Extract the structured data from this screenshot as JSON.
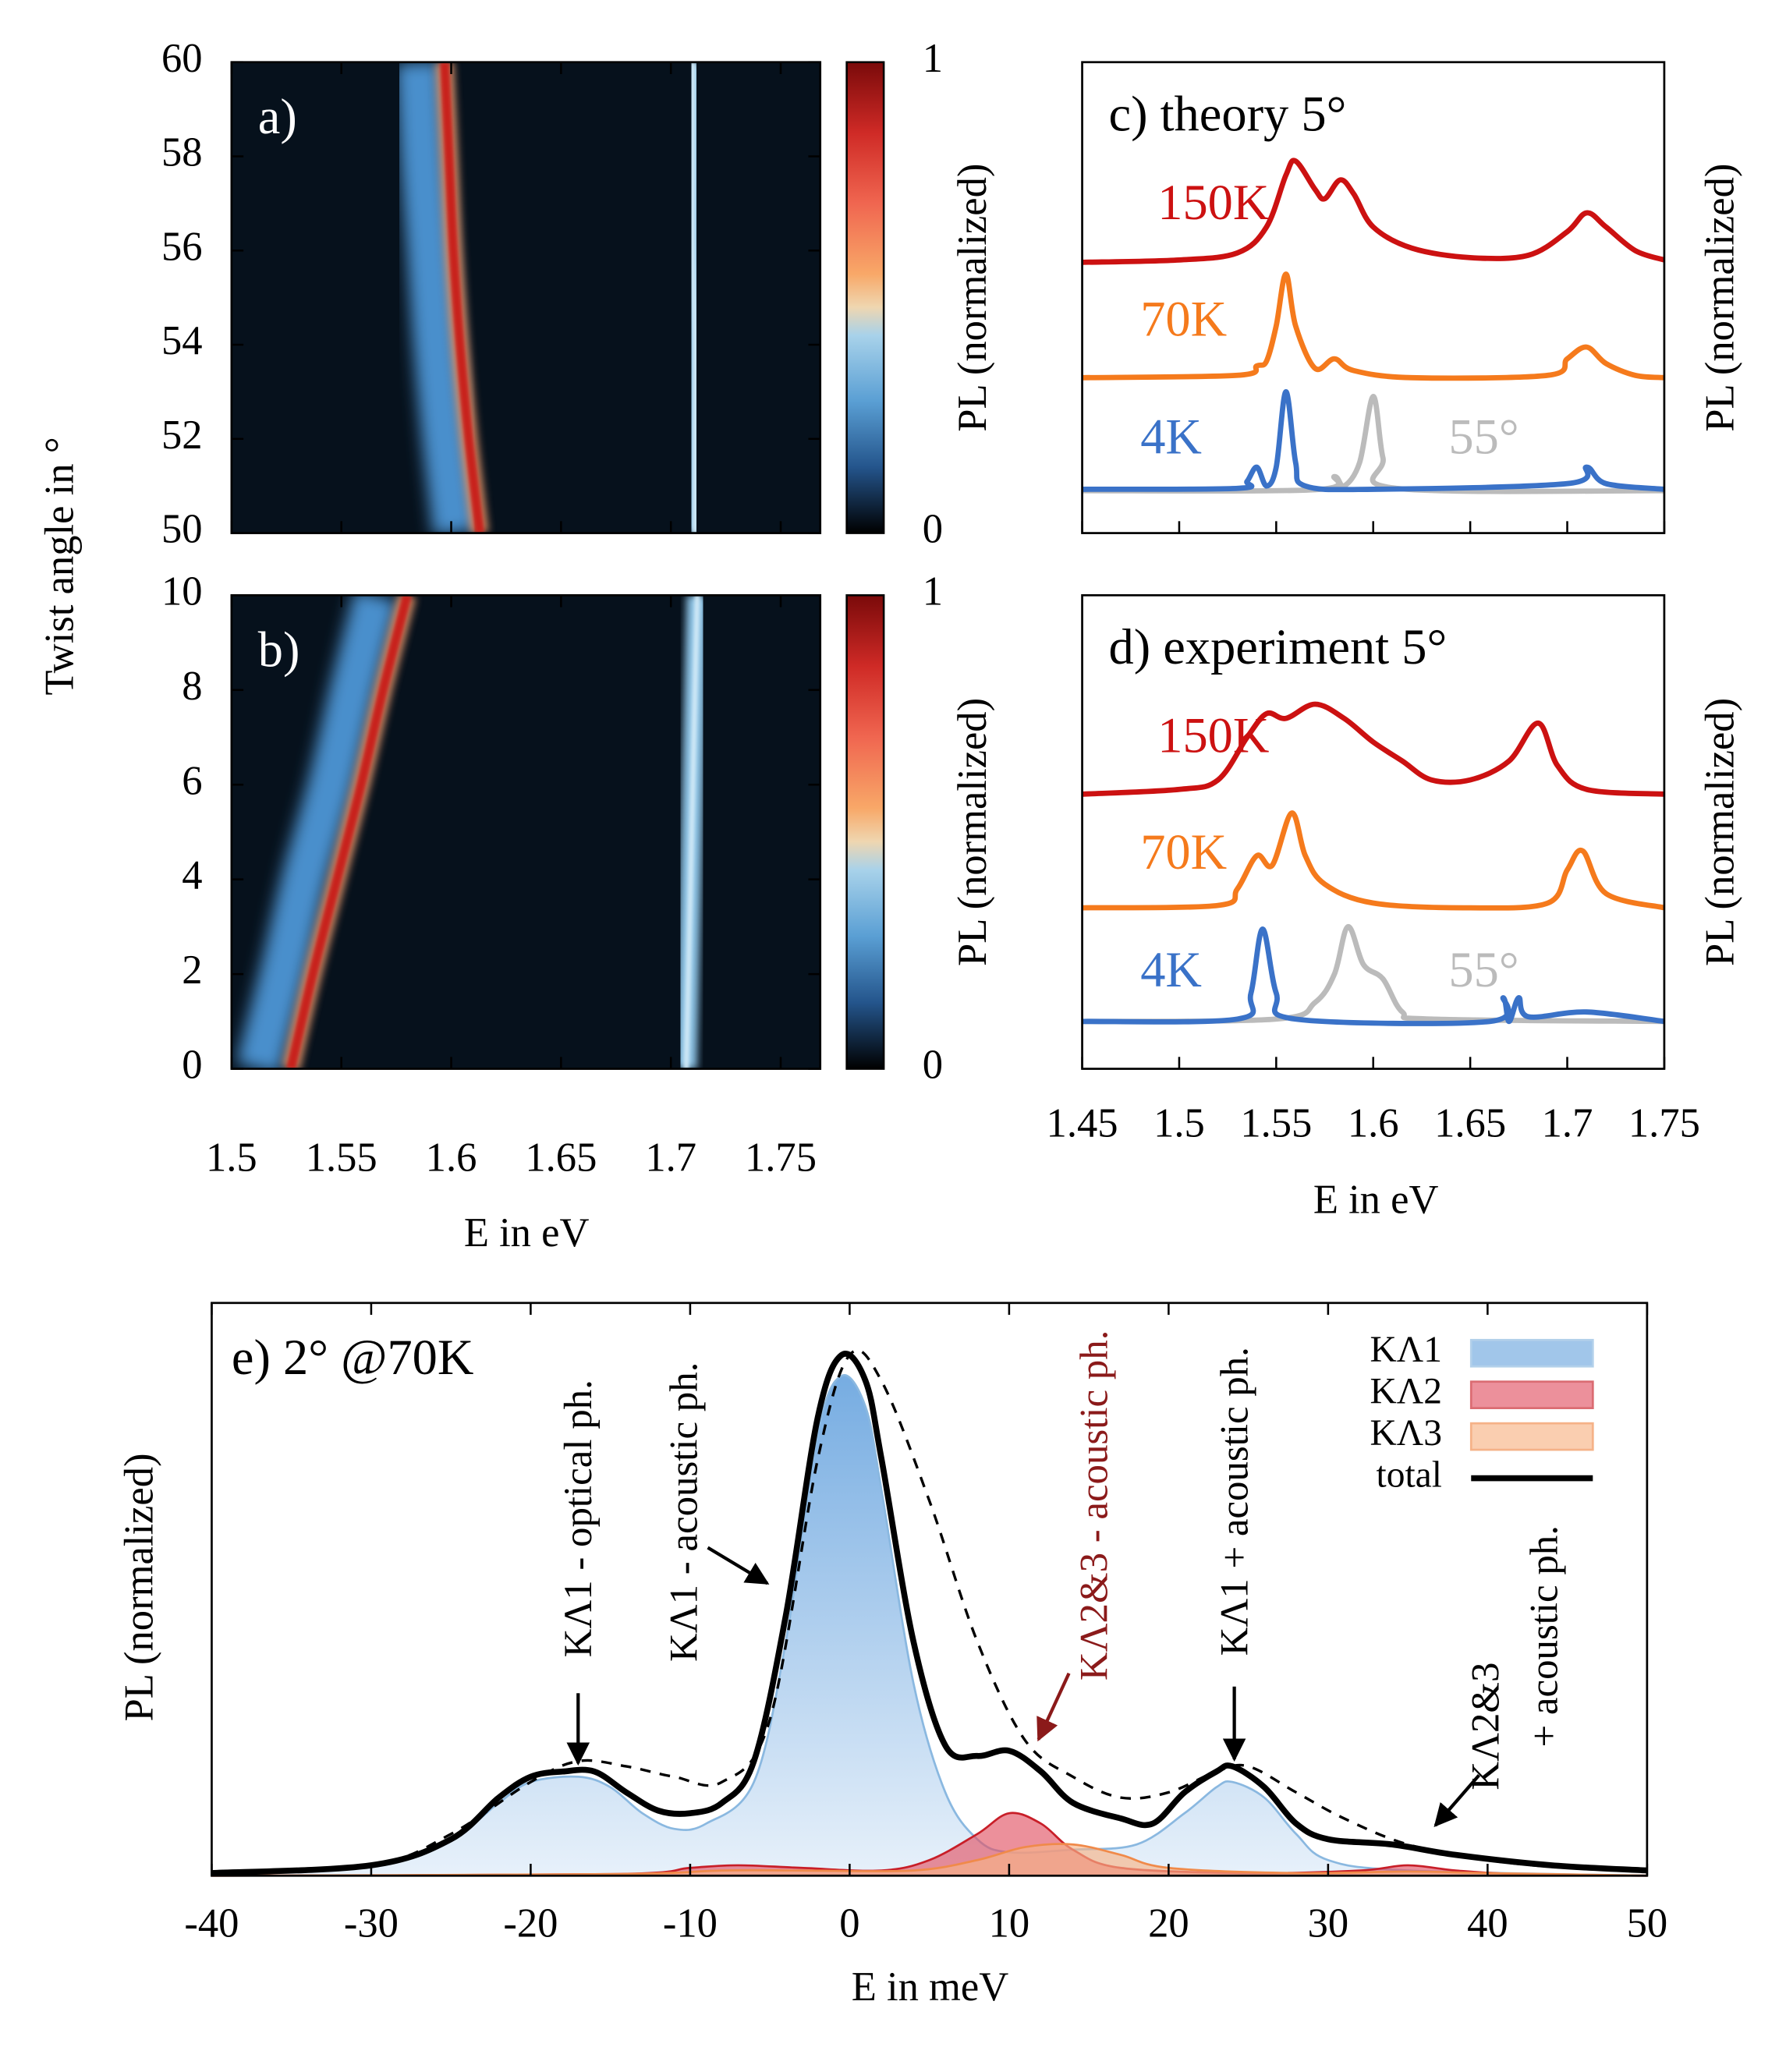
{
  "chart_data": [
    {
      "type": "heatmap",
      "ylabel": "Twist angle in °",
      "colorbar_label": "PL (normalized)",
      "panel": "a)",
      "ylim": [
        50,
        60
      ],
      "yticks": [
        50,
        52,
        54,
        56,
        58,
        60
      ],
      "xlim": [
        1.5,
        1.768
      ],
      "clim": [
        0,
        1
      ],
      "cticks": [
        0,
        1
      ],
      "bands": [
        {
          "color": "#4a8fcc",
          "y": [
            50,
            52,
            54,
            56,
            58,
            60
          ],
          "x": [
            1.602,
            1.597,
            1.593,
            1.59,
            1.587,
            1.585
          ]
        },
        {
          "color": "#c8201c",
          "y": [
            50,
            52,
            54,
            56,
            58,
            60
          ],
          "x": [
            1.613,
            1.608,
            1.604,
            1.601,
            1.599,
            1.597
          ]
        },
        {
          "color": "#8ec4e6",
          "y": [
            50,
            52,
            54,
            56,
            58,
            60
          ],
          "x": [
            1.711,
            1.711,
            1.711,
            1.71,
            1.71,
            1.71
          ]
        }
      ]
    },
    {
      "type": "heatmap",
      "xlabel": "E in eV",
      "colorbar_label": "PL (normalized)",
      "panel": "b)",
      "ylim": [
        0,
        10
      ],
      "yticks": [
        0,
        2,
        4,
        6,
        8,
        10
      ],
      "xlim": [
        1.5,
        1.768
      ],
      "xticks": [
        1.5,
        1.55,
        1.6,
        1.65,
        1.7,
        1.75
      ],
      "clim": [
        0,
        1
      ],
      "cticks": [
        0,
        1
      ],
      "bands": [
        {
          "color": "#4a8fcc",
          "y": [
            0,
            2,
            4,
            6,
            8,
            10
          ],
          "x": [
            1.512,
            1.523,
            1.533,
            1.545,
            1.555,
            1.566
          ]
        },
        {
          "color": "#c8201c",
          "y": [
            0,
            2,
            4,
            6,
            8,
            10
          ],
          "x": [
            1.527,
            1.537,
            1.548,
            1.559,
            1.569,
            1.58
          ]
        },
        {
          "color": "#8ec4e6",
          "y": [
            0,
            2,
            4,
            6,
            8,
            10
          ],
          "x": [
            1.707,
            1.708,
            1.709,
            1.71,
            1.711,
            1.712
          ]
        }
      ]
    },
    {
      "type": "line",
      "title": "c) theory 5°",
      "ylabel": "PL (normalized)",
      "xlim": [
        1.45,
        1.75
      ],
      "ylim": [
        0,
        10
      ],
      "series": [
        {
          "name": "150K",
          "color": "#cc1111",
          "x": [
            1.45,
            1.5,
            1.53,
            1.545,
            1.555,
            1.56,
            1.57,
            1.575,
            1.583,
            1.59,
            1.6,
            1.62,
            1.65,
            1.68,
            1.7,
            1.71,
            1.72,
            1.735,
            1.75
          ],
          "values": [
            5.75,
            5.8,
            5.95,
            6.5,
            7.6,
            7.9,
            7.3,
            7.1,
            7.5,
            7.2,
            6.5,
            6.05,
            5.85,
            5.9,
            6.4,
            6.8,
            6.5,
            6.0,
            5.8
          ]
        },
        {
          "name": "70K",
          "color": "#f57a1c",
          "x": [
            1.45,
            1.53,
            1.54,
            1.545,
            1.55,
            1.555,
            1.56,
            1.57,
            1.58,
            1.59,
            1.62,
            1.69,
            1.7,
            1.71,
            1.72,
            1.735,
            1.75
          ],
          "values": [
            3.3,
            3.35,
            3.55,
            3.65,
            4.4,
            5.5,
            4.4,
            3.5,
            3.7,
            3.45,
            3.3,
            3.35,
            3.7,
            3.95,
            3.6,
            3.35,
            3.3
          ]
        },
        {
          "name": "4K",
          "color": "#3a72c8",
          "x": [
            1.45,
            1.53,
            1.535,
            1.54,
            1.545,
            1.55,
            1.555,
            1.56,
            1.565,
            1.6,
            1.7,
            1.71,
            1.72,
            1.75
          ],
          "values": [
            0.93,
            0.95,
            1.1,
            1.4,
            1.0,
            1.4,
            3.0,
            1.5,
            1.0,
            0.93,
            1.05,
            1.4,
            1.05,
            0.93
          ]
        },
        {
          "name": "55°",
          "color": "#bbbbbb",
          "x": [
            1.45,
            1.57,
            1.58,
            1.585,
            1.593,
            1.6,
            1.605,
            1.612,
            1.75
          ],
          "values": [
            0.9,
            0.92,
            1.2,
            1.0,
            1.5,
            2.9,
            1.6,
            0.95,
            0.9
          ]
        }
      ]
    },
    {
      "type": "line",
      "title": "d) experiment 5°",
      "ylabel": "PL (normalized)",
      "xlabel": "E in eV",
      "xlim": [
        1.45,
        1.75
      ],
      "ylim": [
        0,
        10
      ],
      "xticks": [
        1.45,
        1.5,
        1.55,
        1.6,
        1.65,
        1.7,
        1.75
      ],
      "series": [
        {
          "name": "150K",
          "color": "#cc1111",
          "x": [
            1.45,
            1.5,
            1.52,
            1.535,
            1.545,
            1.555,
            1.57,
            1.585,
            1.6,
            1.615,
            1.63,
            1.65,
            1.67,
            1.685,
            1.695,
            1.71,
            1.75
          ],
          "values": [
            5.8,
            5.9,
            6.1,
            7.0,
            7.5,
            7.4,
            7.7,
            7.4,
            6.9,
            6.5,
            6.1,
            6.1,
            6.5,
            7.3,
            6.4,
            5.9,
            5.8
          ]
        },
        {
          "name": "70K",
          "color": "#f57a1c",
          "x": [
            1.45,
            1.52,
            1.53,
            1.54,
            1.548,
            1.558,
            1.565,
            1.575,
            1.6,
            1.65,
            1.69,
            1.7,
            1.708,
            1.72,
            1.75
          ],
          "values": [
            3.4,
            3.45,
            3.8,
            4.5,
            4.3,
            5.4,
            4.5,
            3.9,
            3.5,
            3.4,
            3.5,
            4.2,
            4.6,
            3.7,
            3.4
          ]
        },
        {
          "name": "4K",
          "color": "#3a72c8",
          "x": [
            1.45,
            1.53,
            1.537,
            1.543,
            1.55,
            1.56,
            1.66,
            1.667,
            1.67,
            1.675,
            1.68,
            1.71,
            1.75
          ],
          "values": [
            1.0,
            1.05,
            1.6,
            2.95,
            1.6,
            1.05,
            1.0,
            1.5,
            1.0,
            1.5,
            1.1,
            1.2,
            1.0
          ]
        },
        {
          "name": "55°",
          "color": "#bbbbbb",
          "x": [
            1.45,
            1.55,
            1.57,
            1.58,
            1.587,
            1.595,
            1.605,
            1.615,
            1.63,
            1.75
          ],
          "values": [
            1.0,
            1.05,
            1.4,
            2.0,
            3.0,
            2.2,
            1.9,
            1.2,
            1.05,
            1.0
          ]
        }
      ]
    },
    {
      "type": "area",
      "title": "e) 2° @70K",
      "ylabel": "PL (normalized)",
      "xlabel": "E in meV",
      "xlim": [
        -40,
        50
      ],
      "ylim": [
        0,
        1.1
      ],
      "xticks": [
        -40,
        -30,
        -20,
        -10,
        0,
        10,
        20,
        30,
        40,
        50
      ],
      "legend": "top-right",
      "series": [
        {
          "name": "KΛ1",
          "color": "#8ab8e0",
          "fill": "#6fa8e0",
          "x": [
            -40,
            -30,
            -25,
            -22,
            -20,
            -17,
            -15,
            -13,
            -11,
            -9,
            -6,
            -4,
            -2,
            -0.5,
            1,
            2,
            4,
            6,
            8,
            10,
            14,
            18,
            21,
            23,
            24,
            26,
            28,
            30,
            35,
            50
          ],
          "values": [
            0.005,
            0.02,
            0.07,
            0.14,
            0.18,
            0.19,
            0.17,
            0.12,
            0.09,
            0.1,
            0.18,
            0.45,
            0.85,
            0.96,
            0.9,
            0.74,
            0.37,
            0.16,
            0.07,
            0.045,
            0.05,
            0.06,
            0.12,
            0.17,
            0.18,
            0.15,
            0.08,
            0.03,
            0.01,
            0.0
          ]
        },
        {
          "name": "KΛ2",
          "color": "#c81e28",
          "fill": "#e25566",
          "x": [
            -40,
            -15,
            -10,
            -7,
            -3,
            2,
            5,
            8,
            10,
            12,
            14,
            17,
            25,
            32,
            35,
            38,
            42,
            50
          ],
          "values": [
            0,
            0.003,
            0.015,
            0.02,
            0.015,
            0.01,
            0.03,
            0.08,
            0.12,
            0.1,
            0.05,
            0.015,
            0.005,
            0.01,
            0.02,
            0.01,
            0.003,
            0
          ]
        },
        {
          "name": "KΛ3",
          "color": "#f08a4a",
          "fill": "#f8b487",
          "x": [
            -40,
            -15,
            -8,
            -3,
            4,
            8,
            11,
            14,
            17,
            20,
            28,
            35,
            40,
            50
          ],
          "values": [
            0,
            0.003,
            0.01,
            0.01,
            0.01,
            0.03,
            0.055,
            0.06,
            0.04,
            0.015,
            0.005,
            0.008,
            0.005,
            0
          ]
        },
        {
          "name": "total",
          "color": "#000000",
          "x": [
            -40,
            -30,
            -25,
            -22,
            -20,
            -18,
            -16,
            -14,
            -12,
            -10,
            -8,
            -6,
            -4,
            -2,
            -0.5,
            1,
            2,
            4,
            6,
            8,
            10,
            12,
            14,
            17,
            19,
            21,
            23,
            24,
            26,
            28,
            30,
            34,
            38,
            44,
            50
          ],
          "values": [
            0.005,
            0.02,
            0.07,
            0.15,
            0.19,
            0.2,
            0.2,
            0.16,
            0.125,
            0.12,
            0.14,
            0.22,
            0.5,
            0.88,
            1.0,
            0.95,
            0.8,
            0.45,
            0.25,
            0.23,
            0.24,
            0.2,
            0.14,
            0.11,
            0.1,
            0.16,
            0.2,
            0.21,
            0.17,
            0.1,
            0.07,
            0.06,
            0.04,
            0.02,
            0.01
          ]
        }
      ],
      "fit": {
        "color": "#000000",
        "x": [
          -40,
          -30,
          -25,
          -20,
          -17,
          -14,
          -11,
          -8,
          -5,
          -2,
          0,
          2,
          5,
          8,
          11,
          14,
          17,
          20,
          23,
          25,
          28,
          31,
          35,
          40,
          45,
          50
        ],
        "values": [
          0.005,
          0.02,
          0.08,
          0.18,
          0.22,
          0.21,
          0.19,
          0.18,
          0.3,
          0.8,
          1.0,
          0.95,
          0.72,
          0.45,
          0.26,
          0.19,
          0.15,
          0.16,
          0.2,
          0.21,
          0.16,
          0.11,
          0.06,
          0.03,
          0.015,
          0.01
        ]
      },
      "annotations": [
        {
          "text": "KΛ1 - optical ph.",
          "color": "#000000"
        },
        {
          "text": "KΛ1 - acoustic ph.",
          "color": "#000000"
        },
        {
          "text": "KΛ2&3 - acoustic ph.",
          "color": "#8b1a1a"
        },
        {
          "text": "KΛ1 + acoustic ph.",
          "color": "#000000"
        },
        {
          "text": "KΛ2&3",
          "color": "#000000"
        },
        {
          "text": "+ acoustic ph.",
          "color": "#000000"
        }
      ]
    }
  ]
}
